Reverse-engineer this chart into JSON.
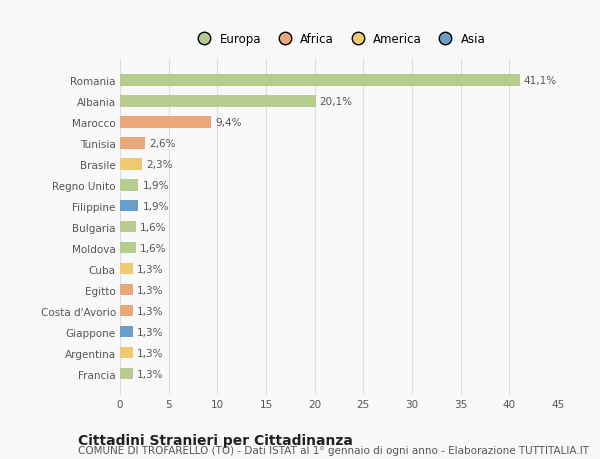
{
  "countries": [
    "Romania",
    "Albania",
    "Marocco",
    "Tunisia",
    "Brasile",
    "Regno Unito",
    "Filippine",
    "Bulgaria",
    "Moldova",
    "Cuba",
    "Egitto",
    "Costa d'Avorio",
    "Giappone",
    "Argentina",
    "Francia"
  ],
  "values": [
    41.1,
    20.1,
    9.4,
    2.6,
    2.3,
    1.9,
    1.9,
    1.6,
    1.6,
    1.3,
    1.3,
    1.3,
    1.3,
    1.3,
    1.3
  ],
  "labels": [
    "41,1%",
    "20,1%",
    "9,4%",
    "2,6%",
    "2,3%",
    "1,9%",
    "1,9%",
    "1,6%",
    "1,6%",
    "1,3%",
    "1,3%",
    "1,3%",
    "1,3%",
    "1,3%",
    "1,3%"
  ],
  "continents": [
    "Europa",
    "Europa",
    "Africa",
    "Africa",
    "America",
    "Europa",
    "Asia",
    "Europa",
    "Europa",
    "America",
    "Africa",
    "Africa",
    "Asia",
    "America",
    "Europa"
  ],
  "continent_colors": {
    "Europa": "#b5cc8e",
    "Africa": "#e8a87c",
    "America": "#f0c96e",
    "Asia": "#6b9ec7"
  },
  "legend_items": [
    "Europa",
    "Africa",
    "America",
    "Asia"
  ],
  "legend_colors": [
    "#b5cc8e",
    "#e8a87c",
    "#f0c96e",
    "#6b9ec7"
  ],
  "xlim": [
    0,
    45
  ],
  "xticks": [
    0,
    5,
    10,
    15,
    20,
    25,
    30,
    35,
    40,
    45
  ],
  "title": "Cittadini Stranieri per Cittadinanza",
  "subtitle": "COMUNE DI TROFARELLO (TO) - Dati ISTAT al 1° gennaio di ogni anno - Elaborazione TUTTITALIA.IT",
  "bg_color": "#f9f9f9",
  "grid_color": "#dddddd",
  "text_color": "#555555",
  "title_fontsize": 10,
  "subtitle_fontsize": 7.5,
  "label_fontsize": 7.5,
  "tick_fontsize": 7.5,
  "legend_fontsize": 8.5,
  "bar_height": 0.55
}
